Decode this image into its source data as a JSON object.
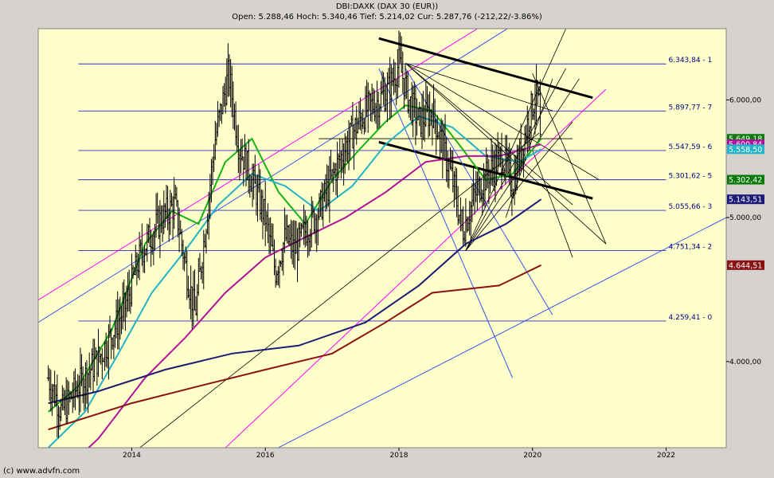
{
  "header": {
    "title": "DBI:DAXK (DAX 30 (EUR))",
    "ohlc": "Open: 5.288,46 Hoch: 5.340,46 Tief: 5.214,02 Cur: 5.287,76 (-212,22/-3.86%)"
  },
  "footer": "(c) www.advfn.com",
  "chart_data": {
    "type": "line",
    "title": "DBI:DAXK (DAX 30 (EUR))",
    "scale": "log",
    "grid": false,
    "ylim": [
      3500,
      6700
    ],
    "xlim": [
      2012.6,
      2022.9
    ],
    "y_ticks": [
      {
        "value": 4000,
        "label": "4.000,00"
      },
      {
        "value": 5000,
        "label": "5.000,00"
      },
      {
        "value": 6000,
        "label": "6.000,00"
      }
    ],
    "x_ticks": [
      {
        "value": 2014,
        "label": "2014"
      },
      {
        "value": 2016,
        "label": "2016"
      },
      {
        "value": 2018,
        "label": "2018"
      },
      {
        "value": 2020,
        "label": "2020"
      },
      {
        "value": 2022,
        "label": "2022"
      }
    ],
    "fib_levels": [
      {
        "value": 6343.84,
        "label": "6.343,84 - 1",
        "x0": 2013.2,
        "x1": 2022.0
      },
      {
        "value": 5897.77,
        "label": "5.897,77 - 7",
        "x0": 2013.2,
        "x1": 2022.0
      },
      {
        "value": 5547.59,
        "label": "5.547,59 - 6",
        "x0": 2013.2,
        "x1": 2022.0
      },
      {
        "value": 5301.62,
        "label": "5.301,62 - 5",
        "x0": 2013.2,
        "x1": 2022.0
      },
      {
        "value": 5055.66,
        "label": "5.055,66 - 3",
        "x0": 2013.2,
        "x1": 2022.0
      },
      {
        "value": 4751.34,
        "label": "4.751,34 - 2",
        "x0": 2013.2,
        "x1": 2022.0
      },
      {
        "value": 4259.41,
        "label": "4.259,41 - 0",
        "x0": 2013.2,
        "x1": 2022.0
      }
    ],
    "price_badges": [
      {
        "value": 5649.18,
        "label": "5.649,18",
        "color": "#0a7a0a"
      },
      {
        "value": 5600.84,
        "label": "5.600,84",
        "color": "#b0129c"
      },
      {
        "value": 5558.5,
        "label": "5.558,50",
        "color": "#22b3c8"
      },
      {
        "value": 5302.42,
        "label": "5.302,42",
        "color": "#0a7a0a"
      },
      {
        "value": 5143.51,
        "label": "5.143,51",
        "color": "#1c1c78"
      },
      {
        "value": 4644.51,
        "label": "4.644,51",
        "color": "#8a1212"
      }
    ],
    "price_anchors": [
      [
        2012.75,
        3900
      ],
      [
        2012.95,
        3700
      ],
      [
        2013.2,
        3850
      ],
      [
        2013.55,
        4050
      ],
      [
        2013.9,
        4350
      ],
      [
        2014.15,
        4750
      ],
      [
        2014.45,
        5000
      ],
      [
        2014.65,
        5100
      ],
      [
        2014.8,
        4650
      ],
      [
        2014.95,
        4300
      ],
      [
        2015.1,
        4900
      ],
      [
        2015.25,
        5650
      ],
      [
        2015.45,
        6250
      ],
      [
        2015.6,
        5600
      ],
      [
        2015.8,
        5300
      ],
      [
        2016.0,
        5000
      ],
      [
        2016.15,
        4600
      ],
      [
        2016.3,
        4850
      ],
      [
        2016.45,
        4750
      ],
      [
        2016.6,
        4900
      ],
      [
        2016.8,
        5050
      ],
      [
        2016.95,
        5250
      ],
      [
        2017.1,
        5450
      ],
      [
        2017.3,
        5700
      ],
      [
        2017.5,
        5900
      ],
      [
        2017.7,
        6000
      ],
      [
        2017.85,
        6100
      ],
      [
        2018.0,
        6350
      ],
      [
        2018.15,
        6000
      ],
      [
        2018.3,
        5800
      ],
      [
        2018.5,
        5900
      ],
      [
        2018.65,
        5600
      ],
      [
        2018.8,
        5300
      ],
      [
        2018.95,
        4900
      ],
      [
        2019.05,
        5050
      ],
      [
        2019.2,
        5250
      ],
      [
        2019.4,
        5400
      ],
      [
        2019.55,
        5500
      ],
      [
        2019.7,
        5250
      ],
      [
        2019.85,
        5600
      ],
      [
        2019.95,
        5850
      ],
      [
        2020.05,
        6050
      ],
      [
        2020.1,
        5950
      ],
      [
        2020.13,
        5290
      ]
    ],
    "series": [
      {
        "name": "",
        "color": "#15b215",
        "points": [
          [
            2012.75,
            3700
          ],
          [
            2013.2,
            3850
          ],
          [
            2013.7,
            4200
          ],
          [
            2014.2,
            4800
          ],
          [
            2014.6,
            5050
          ],
          [
            2015.0,
            4950
          ],
          [
            2015.4,
            5450
          ],
          [
            2015.8,
            5650
          ],
          [
            2016.2,
            5200
          ],
          [
            2016.6,
            4950
          ],
          [
            2017.0,
            5300
          ],
          [
            2017.4,
            5550
          ],
          [
            2017.8,
            5800
          ],
          [
            2018.1,
            5950
          ],
          [
            2018.5,
            5900
          ],
          [
            2018.9,
            5600
          ],
          [
            2019.3,
            5300
          ],
          [
            2019.7,
            5350
          ],
          [
            2020.13,
            5649.18
          ]
        ]
      },
      {
        "name": "",
        "color": "#22b3c8",
        "points": [
          [
            2012.75,
            3500
          ],
          [
            2013.3,
            3700
          ],
          [
            2013.8,
            4050
          ],
          [
            2014.3,
            4450
          ],
          [
            2014.8,
            4750
          ],
          [
            2015.3,
            5100
          ],
          [
            2015.8,
            5350
          ],
          [
            2016.3,
            5250
          ],
          [
            2016.8,
            5050
          ],
          [
            2017.3,
            5250
          ],
          [
            2017.8,
            5600
          ],
          [
            2018.3,
            5850
          ],
          [
            2018.8,
            5750
          ],
          [
            2019.3,
            5500
          ],
          [
            2019.8,
            5450
          ],
          [
            2020.13,
            5558.5
          ]
        ]
      },
      {
        "name": "",
        "color": "#b0129c",
        "points": [
          [
            2012.75,
            3300
          ],
          [
            2013.5,
            3550
          ],
          [
            2014.2,
            3900
          ],
          [
            2014.8,
            4150
          ],
          [
            2015.4,
            4450
          ],
          [
            2016.0,
            4700
          ],
          [
            2016.6,
            4850
          ],
          [
            2017.2,
            5000
          ],
          [
            2017.8,
            5200
          ],
          [
            2018.4,
            5450
          ],
          [
            2019.0,
            5500
          ],
          [
            2019.5,
            5500
          ],
          [
            2020.13,
            5600.84
          ]
        ]
      },
      {
        "name": "",
        "color": "#1c1c78",
        "points": [
          [
            2012.75,
            3750
          ],
          [
            2013.5,
            3820
          ],
          [
            2014.5,
            3950
          ],
          [
            2015.5,
            4050
          ],
          [
            2016.5,
            4100
          ],
          [
            2017.5,
            4250
          ],
          [
            2018.3,
            4500
          ],
          [
            2019.0,
            4800
          ],
          [
            2019.6,
            4950
          ],
          [
            2020.13,
            5143.51
          ]
        ]
      },
      {
        "name": "",
        "color": "#8a1212",
        "points": [
          [
            2012.75,
            3600
          ],
          [
            2014.0,
            3750
          ],
          [
            2015.0,
            3850
          ],
          [
            2016.0,
            3950
          ],
          [
            2017.0,
            4050
          ],
          [
            2017.8,
            4250
          ],
          [
            2018.5,
            4450
          ],
          [
            2019.5,
            4500
          ],
          [
            2020.13,
            4644.51
          ]
        ]
      }
    ],
    "trendlines": [
      {
        "color": "#ff00ff",
        "x0": 2012.6,
        "y0": 4400,
        "x1": 2020.3,
        "y1": 7200,
        "width": 1
      },
      {
        "color": "#3355ee",
        "x0": 2012.6,
        "y0": 4250,
        "x1": 2020.3,
        "y1": 7000,
        "width": 1
      },
      {
        "color": "#ff00ff",
        "x0": 2014.8,
        "y0": 3300,
        "x1": 2021.1,
        "y1": 6100,
        "width": 1
      },
      {
        "color": "#3355ee",
        "x0": 2014.8,
        "y0": 3250,
        "x1": 2022.9,
        "y1": 5000,
        "width": 1
      },
      {
        "color": "#000000",
        "x0": 2013.4,
        "y0": 3300,
        "x1": 2020.1,
        "y1": 5700,
        "width": 0.8
      },
      {
        "color": "#000000",
        "x0": 2017.7,
        "y0": 6600,
        "x1": 2020.9,
        "y1": 6020,
        "width": 3
      },
      {
        "color": "#000000",
        "x0": 2017.7,
        "y0": 5620,
        "x1": 2020.9,
        "y1": 5150,
        "width": 3
      },
      {
        "color": "#3355ee",
        "x0": 2017.7,
        "y0": 6300,
        "x1": 2019.7,
        "y1": 3900,
        "width": 1
      },
      {
        "color": "#3355ee",
        "x0": 2018.1,
        "y0": 6300,
        "x1": 2020.3,
        "y1": 4300,
        "width": 1
      },
      {
        "color": "#000000",
        "x0": 2018.1,
        "y0": 6350,
        "x1": 2020.6,
        "y1": 5100,
        "width": 0.8
      },
      {
        "color": "#000000",
        "x0": 2018.1,
        "y0": 6350,
        "x1": 2021.1,
        "y1": 4800,
        "width": 0.8
      },
      {
        "color": "#000000",
        "x0": 2018.1,
        "y0": 6350,
        "x1": 2021.0,
        "y1": 5300,
        "width": 0.8
      },
      {
        "color": "#000000",
        "x0": 2018.1,
        "y0": 6350,
        "x1": 2020.3,
        "y1": 5900,
        "width": 0.8
      },
      {
        "color": "#000000",
        "x0": 2019.0,
        "y0": 4750,
        "x1": 2020.5,
        "y1": 6700,
        "width": 0.8
      },
      {
        "color": "#000000",
        "x0": 2019.0,
        "y0": 4750,
        "x1": 2020.5,
        "y1": 6300,
        "width": 0.8
      },
      {
        "color": "#000000",
        "x0": 2019.0,
        "y0": 4750,
        "x1": 2020.7,
        "y1": 6200,
        "width": 0.8
      },
      {
        "color": "#000000",
        "x0": 2019.0,
        "y0": 4750,
        "x1": 2020.6,
        "y1": 5800,
        "width": 0.8
      },
      {
        "color": "#000000",
        "x0": 2019.6,
        "y0": 5000,
        "x1": 2020.3,
        "y1": 6200,
        "width": 0.8
      },
      {
        "color": "#000000",
        "x0": 2020.0,
        "y0": 5550,
        "x1": 2020.6,
        "y1": 4700,
        "width": 0.8
      },
      {
        "color": "#000000",
        "x0": 2020.0,
        "y0": 6250,
        "x1": 2021.1,
        "y1": 4800,
        "width": 0.8
      },
      {
        "color": "#000000",
        "x0": 2016.8,
        "y0": 5650,
        "x1": 2020.6,
        "y1": 5650,
        "width": 0.8
      }
    ],
    "colors": {
      "background": "#ffffcc",
      "frame": "#d6d3ce",
      "fib": "#2b2bbf"
    }
  }
}
